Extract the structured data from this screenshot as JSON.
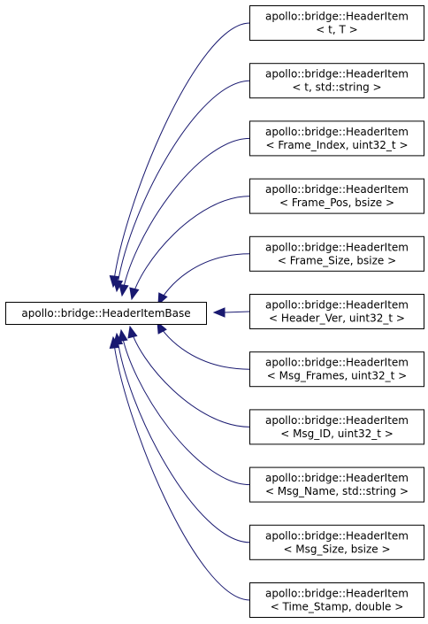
{
  "diagram": {
    "base": {
      "label": "apollo::bridge::HeaderItemBase"
    },
    "derived": [
      {
        "line1": "apollo::bridge::HeaderItem",
        "line2": "< t, T >"
      },
      {
        "line1": "apollo::bridge::HeaderItem",
        "line2": "< t, std::string >"
      },
      {
        "line1": "apollo::bridge::HeaderItem",
        "line2": "< Frame_Index, uint32_t >"
      },
      {
        "line1": "apollo::bridge::HeaderItem",
        "line2": "< Frame_Pos, bsize >"
      },
      {
        "line1": "apollo::bridge::HeaderItem",
        "line2": "< Frame_Size, bsize >"
      },
      {
        "line1": "apollo::bridge::HeaderItem",
        "line2": "< Header_Ver, uint32_t >"
      },
      {
        "line1": "apollo::bridge::HeaderItem",
        "line2": "< Msg_Frames, uint32_t >"
      },
      {
        "line1": "apollo::bridge::HeaderItem",
        "line2": "< Msg_ID, uint32_t >"
      },
      {
        "line1": "apollo::bridge::HeaderItem",
        "line2": "< Msg_Name, std::string >"
      },
      {
        "line1": "apollo::bridge::HeaderItem",
        "line2": "< Msg_Size, bsize >"
      },
      {
        "line1": "apollo::bridge::HeaderItem",
        "line2": "< Time_Stamp, double >"
      }
    ],
    "colors": {
      "edge": "#191970",
      "node_border": "#000000",
      "node_fill": "#ffffff",
      "text": "#000000"
    }
  }
}
